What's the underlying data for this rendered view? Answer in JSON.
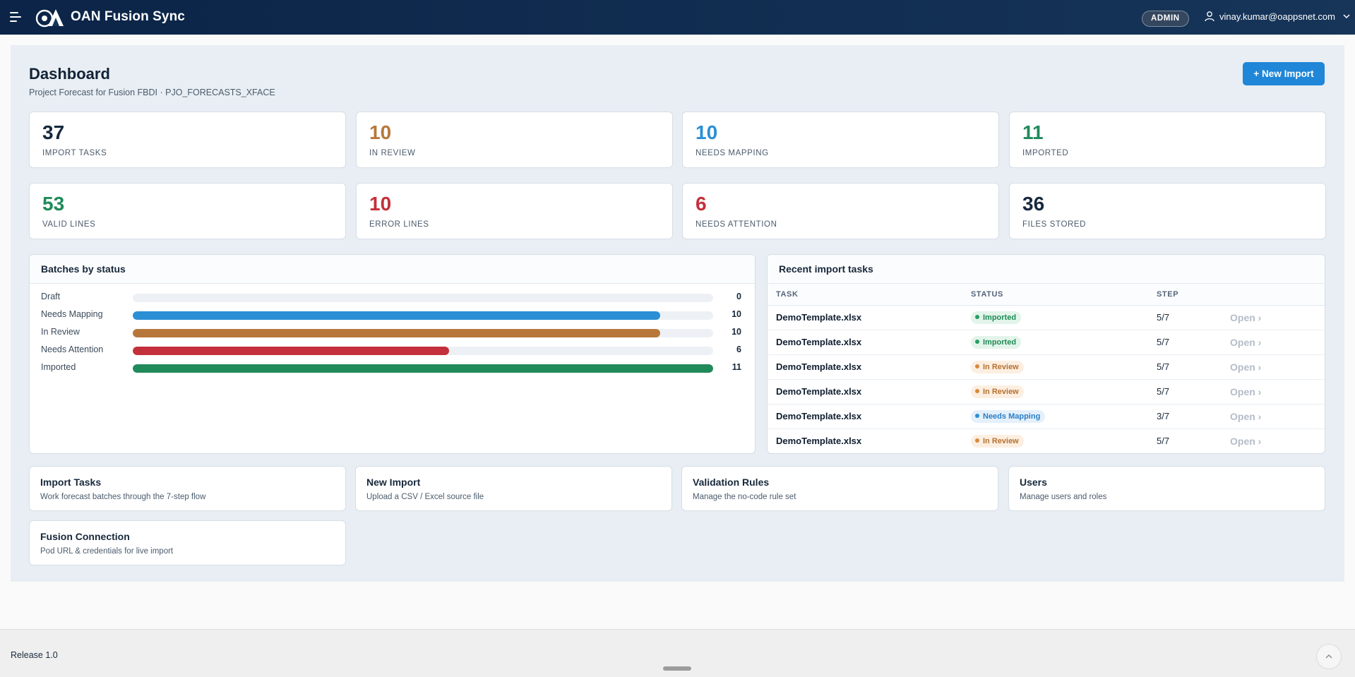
{
  "header": {
    "app_title": "OAN Fusion Sync",
    "role_badge": "ADMIN",
    "user_email": "vinay.kumar@oappsnet.com"
  },
  "page": {
    "title": "Dashboard",
    "subtitle": "Project Forecast for Fusion FBDI · PJO_FORECASTS_XFACE",
    "new_import_label": "+ New Import"
  },
  "stats": [
    {
      "value": "37",
      "label": "Import Tasks",
      "color": "#16293d"
    },
    {
      "value": "10",
      "label": "In Review",
      "color": "#b8773a"
    },
    {
      "value": "10",
      "label": "Needs Mapping",
      "color": "#2b8fd6"
    },
    {
      "value": "11",
      "label": "Imported",
      "color": "#218a5a"
    },
    {
      "value": "53",
      "label": "Valid Lines",
      "color": "#218a5a"
    },
    {
      "value": "10",
      "label": "Error Lines",
      "color": "#c3303b"
    },
    {
      "value": "6",
      "label": "Needs Attention",
      "color": "#c3303b"
    },
    {
      "value": "36",
      "label": "Files Stored",
      "color": "#16293d"
    }
  ],
  "batches": {
    "title": "Batches by status",
    "max": 11,
    "rows": [
      {
        "label": "Draft",
        "value": 0,
        "color": "#2b8fd6"
      },
      {
        "label": "Needs Mapping",
        "value": 10,
        "color": "#2b8fd6"
      },
      {
        "label": "In Review",
        "value": 10,
        "color": "#b8773a"
      },
      {
        "label": "Needs Attention",
        "value": 6,
        "color": "#c3303b"
      },
      {
        "label": "Imported",
        "value": 11,
        "color": "#218a5a"
      }
    ]
  },
  "recent": {
    "title": "Recent import tasks",
    "columns": [
      "TASK",
      "STATUS",
      "STEP"
    ],
    "open_label": "Open ›",
    "rows": [
      {
        "task": "DemoTemplate.xlsx",
        "status": "Imported",
        "step": "5/7"
      },
      {
        "task": "DemoTemplate.xlsx",
        "status": "Imported",
        "step": "5/7"
      },
      {
        "task": "DemoTemplate.xlsx",
        "status": "In Review",
        "step": "5/7"
      },
      {
        "task": "DemoTemplate.xlsx",
        "status": "In Review",
        "step": "5/7"
      },
      {
        "task": "DemoTemplate.xlsx",
        "status": "Needs Mapping",
        "step": "3/7"
      },
      {
        "task": "DemoTemplate.xlsx",
        "status": "In Review",
        "step": "5/7"
      }
    ],
    "status_colors": {
      "Imported": {
        "bg": "#e3f4ea",
        "fg": "#1f8a55",
        "dot": "#24a064"
      },
      "In Review": {
        "bg": "#fcefe1",
        "fg": "#b6702f",
        "dot": "#d88a3f"
      },
      "Needs Mapping": {
        "bg": "#e4f0fb",
        "fg": "#2a7fc6",
        "dot": "#2b8fd6"
      }
    }
  },
  "links": [
    {
      "title": "Import Tasks",
      "desc": "Work forecast batches through the 7-step flow"
    },
    {
      "title": "New Import",
      "desc": "Upload a CSV / Excel source file"
    },
    {
      "title": "Validation Rules",
      "desc": "Manage the no-code rule set"
    },
    {
      "title": "Users",
      "desc": "Manage users and roles"
    },
    {
      "title": "Fusion Connection",
      "desc": "Pod URL & credentials for live import"
    }
  ],
  "footer": {
    "release": "Release 1.0"
  }
}
